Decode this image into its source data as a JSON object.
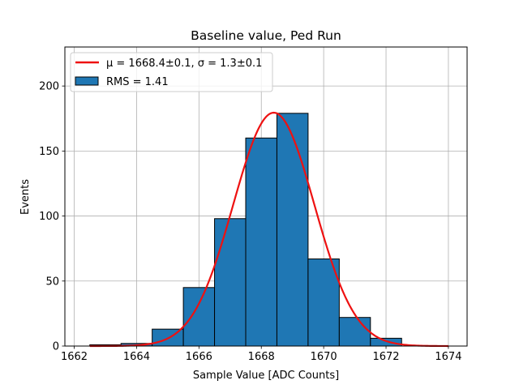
{
  "chart_data": {
    "type": "bar",
    "title": "Baseline value, Ped Run",
    "xlabel": "Sample Value [ADC Counts]",
    "ylabel": "Events",
    "xlim": [
      1661.7,
      1674.6
    ],
    "ylim": [
      0,
      230
    ],
    "xticks": [
      "1662",
      "1664",
      "1666",
      "1668",
      "1670",
      "1672",
      "1674"
    ],
    "xtick_values": [
      1662,
      1664,
      1666,
      1668,
      1670,
      1672,
      1674
    ],
    "yticks": [
      "0",
      "50",
      "100",
      "150",
      "200"
    ],
    "ytick_values": [
      0,
      50,
      100,
      150,
      200
    ],
    "grid": true,
    "legend_placement": "top-left",
    "histogram": {
      "name": "RMS = 1.41",
      "bin_edges": [
        1662.5,
        1663.5,
        1664.5,
        1665.5,
        1666.5,
        1667.5,
        1668.5,
        1669.5,
        1670.5,
        1671.5,
        1672.5
      ],
      "counts": [
        1,
        2,
        13,
        45,
        98,
        160,
        179,
        67,
        22,
        6
      ],
      "color": "#1f77b4",
      "edge_color": "#000000"
    },
    "fit": {
      "name": "μ = 1668.4±0.1, σ = 1.3±0.1",
      "mu": 1668.4,
      "sigma": 1.3,
      "peak": 179.5,
      "x_range": [
        1662.5,
        1674
      ],
      "color": "#ee1111"
    }
  }
}
